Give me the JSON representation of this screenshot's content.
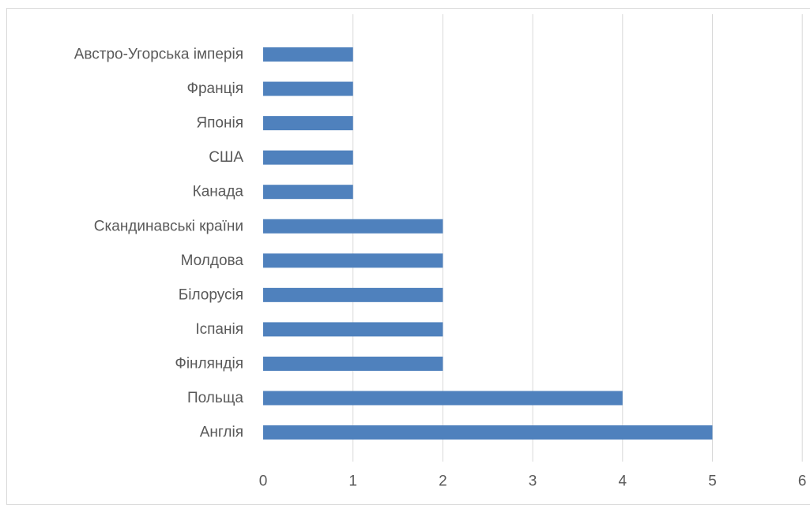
{
  "chart_data": {
    "type": "bar",
    "orientation": "horizontal",
    "categories": [
      "Австро-Угорська імперія",
      "Франція",
      "Японія",
      "США",
      "Канада",
      "Скандинавські країни",
      "Молдова",
      "Білорусія",
      "Іспанія",
      "Фінляндія",
      "Польща",
      "Англія"
    ],
    "values": [
      1,
      1,
      1,
      1,
      1,
      2,
      2,
      2,
      2,
      2,
      4,
      5
    ],
    "xlim": [
      0,
      6
    ],
    "xticks": [
      "0",
      "1",
      "2",
      "3",
      "4",
      "5",
      "6"
    ],
    "title": "",
    "xlabel": "",
    "ylabel": "",
    "grid": "vertical major gridlines",
    "legend": "none",
    "colors": {
      "bar": "#4f81bd",
      "grid": "#d9d9d9",
      "text": "#595959",
      "border": "#d9d9d9"
    }
  }
}
